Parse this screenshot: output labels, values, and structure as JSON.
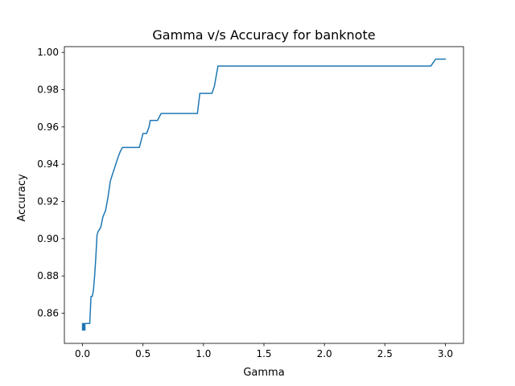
{
  "chart_data": {
    "type": "line",
    "title": "Gamma v/s Accuracy for banknote",
    "xlabel": "Gamma",
    "ylabel": "Accuracy",
    "xlim": [
      -0.15,
      3.15
    ],
    "ylim": [
      0.8438,
      1.0031
    ],
    "x_ticks": [
      0.0,
      0.5,
      1.0,
      1.5,
      2.0,
      2.5,
      3.0
    ],
    "x_tick_labels": [
      "0.0",
      "0.5",
      "1.0",
      "1.5",
      "2.0",
      "2.5",
      "3.0"
    ],
    "y_ticks": [
      0.86,
      0.88,
      0.9,
      0.92,
      0.94,
      0.96,
      0.98,
      1.0
    ],
    "y_tick_labels": [
      "0.86",
      "0.88",
      "0.90",
      "0.92",
      "0.94",
      "0.96",
      "0.98",
      "1.00"
    ],
    "grid": false,
    "color": "#1f77b4",
    "series": [
      {
        "x": [
          0.0,
          0.0,
          0.01,
          0.01,
          0.02,
          0.02,
          0.06,
          0.07,
          0.08,
          0.09,
          0.1,
          0.11,
          0.12,
          0.13,
          0.15,
          0.17,
          0.19,
          0.21,
          0.23,
          0.25,
          0.27,
          0.29,
          0.31,
          0.33,
          0.47,
          0.5,
          0.53,
          0.55,
          0.56,
          0.62,
          0.65,
          0.95,
          0.97,
          1.07,
          1.09,
          1.12,
          2.88,
          2.92,
          3.0
        ],
        "y": [
          0.851,
          0.8545,
          0.8545,
          0.851,
          0.851,
          0.8545,
          0.8545,
          0.869,
          0.869,
          0.872,
          0.88,
          0.89,
          0.902,
          0.904,
          0.906,
          0.912,
          0.915,
          0.922,
          0.931,
          0.935,
          0.939,
          0.943,
          0.9465,
          0.949,
          0.949,
          0.9565,
          0.9565,
          0.96,
          0.9635,
          0.9635,
          0.9672,
          0.9672,
          0.978,
          0.978,
          0.9818,
          0.9927,
          0.9927,
          0.9964,
          0.9964
        ]
      }
    ]
  }
}
